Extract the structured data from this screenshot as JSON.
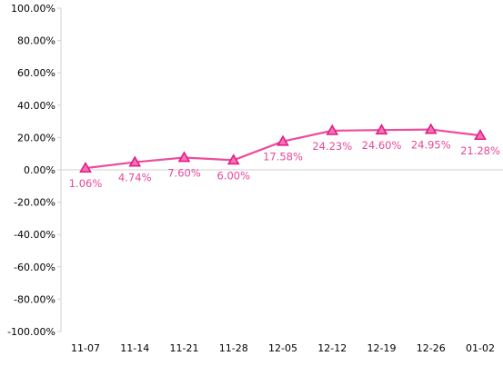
{
  "chart_data": {
    "type": "line",
    "categories": [
      "11-07",
      "11-14",
      "11-21",
      "11-28",
      "12-05",
      "12-12",
      "12-19",
      "12-26",
      "01-02"
    ],
    "series": [
      {
        "values": [
          1.06,
          4.74,
          7.6,
          6.0,
          17.58,
          24.23,
          24.6,
          24.95,
          21.28
        ],
        "labels": [
          "1.06%",
          "4.74%",
          "7.60%",
          "6.00%",
          "17.58%",
          "24.23%",
          "24.60%",
          "24.95%",
          "21.28%"
        ],
        "color": "#ee4c9c",
        "marker_fill": "#f472b6",
        "marker_stroke": "#e21d84",
        "marker": "triangle"
      }
    ],
    "ylim": [
      -100,
      100
    ],
    "yticks": [
      100,
      80,
      60,
      40,
      20,
      0,
      -20,
      -40,
      -60,
      -80,
      -100
    ],
    "ytick_labels": [
      "100.00%",
      "80.00%",
      "60.00%",
      "40.00%",
      "20.00%",
      "0.00%",
      "-20.00%",
      "-40.00%",
      "-60.00%",
      "-80.00%",
      "-100.00%"
    ],
    "grid": false,
    "colors": {
      "axis": "#d0d0d0",
      "tick_text": "#000000",
      "label_text": "#e8479a"
    }
  }
}
